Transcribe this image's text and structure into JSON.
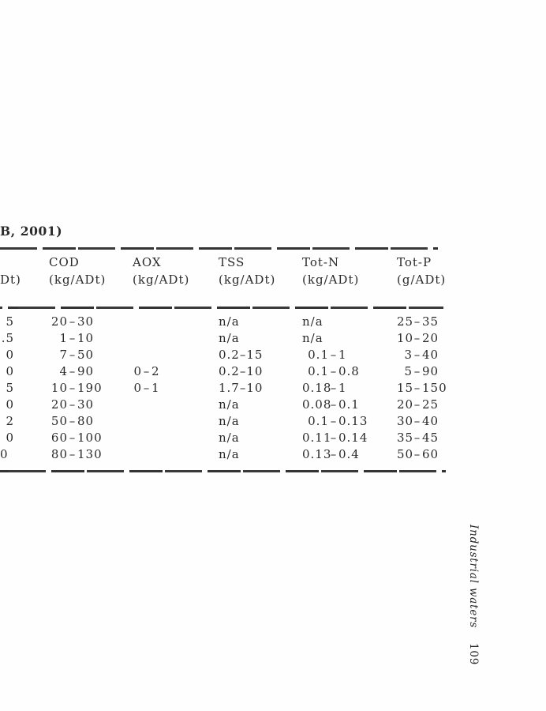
{
  "caption_fragment": "B, 2001)",
  "footer": {
    "running_title": "Industrial waters",
    "page_number": "109"
  },
  "table": {
    "columns": [
      {
        "id": "c0",
        "label": "",
        "unit": "Dt)"
      },
      {
        "id": "cod",
        "label": "COD",
        "unit": "(kg/ADt)"
      },
      {
        "id": "aox",
        "label": "AOX",
        "unit": "(kg/ADt)"
      },
      {
        "id": "tss",
        "label": "TSS",
        "unit": "(kg/ADt)"
      },
      {
        "id": "totn",
        "label": "Tot-N",
        "unit": "(kg/ADt)"
      },
      {
        "id": "totp",
        "label": "Tot-P",
        "unit": "(g/ADt)"
      }
    ],
    "rows": [
      [
        "5",
        "20–30",
        "",
        "n/a",
        "n/a",
        "25–35"
      ],
      [
        ".5",
        "1–10",
        "",
        "n/a",
        "n/a",
        "10–20"
      ],
      [
        "0",
        "7–50",
        "",
        "0.2–15",
        "0.1–1",
        "3–40"
      ],
      [
        "0",
        "4–90",
        "0–2",
        "0.2–10",
        "0.1–0.8",
        "5–90"
      ],
      [
        "5",
        "10–190",
        "0–1",
        "1.7–10",
        "0.18–1",
        "15–150"
      ],
      [
        "0",
        "20–30",
        "",
        "n/a",
        "0.08–0.1",
        "20–25"
      ],
      [
        "2",
        "50–80",
        "",
        "n/a",
        "0.1–0.13",
        "30–40"
      ],
      [
        "0",
        "60–100",
        "",
        "n/a",
        "0.11–0.14",
        "35–45"
      ],
      [
        "0",
        "80–130",
        "",
        "n/a",
        "0.13–0.4",
        "50–60"
      ]
    ]
  }
}
